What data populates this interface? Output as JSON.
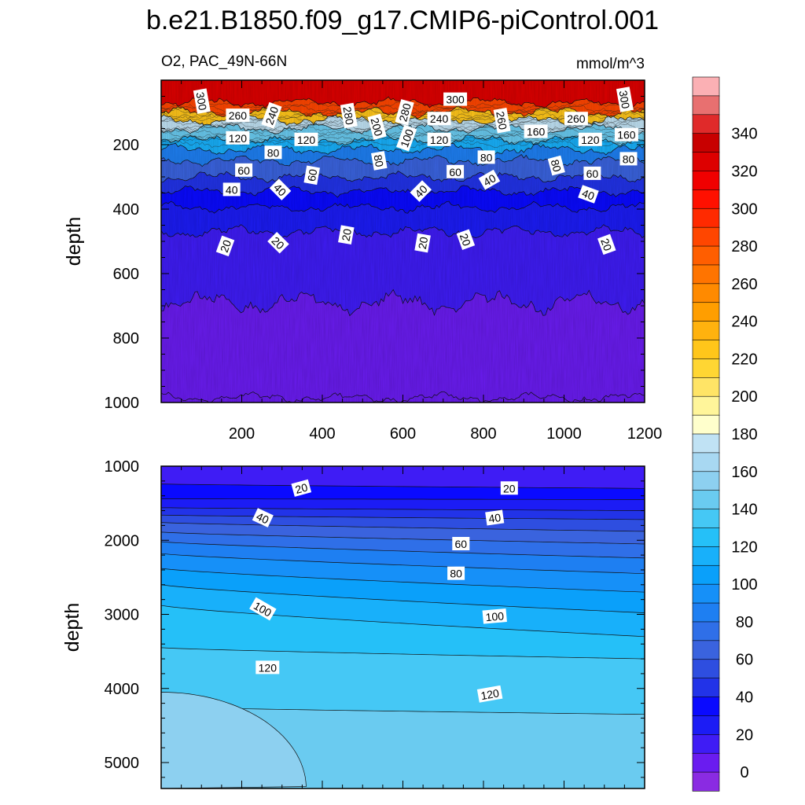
{
  "chart_data": {
    "type": "contour",
    "title": "b.e21.B1850.f09_g17.CMIP6-piControl.001",
    "variable": "O2, PAC_49N-66N",
    "units": "mmol/m^3",
    "panels": [
      {
        "id": "upper",
        "ylabel": "depth",
        "xlim": [
          0,
          1200
        ],
        "ylim": [
          1000,
          0
        ],
        "xticks": [
          "200",
          "400",
          "600",
          "800",
          "1000",
          "1200"
        ],
        "yticks": [
          "200",
          "400",
          "600",
          "800",
          "1000"
        ],
        "bands": [
          {
            "top": 0,
            "bottom": 70,
            "level": 320
          },
          {
            "top": 70,
            "bottom": 100,
            "level": 280
          },
          {
            "top": 100,
            "bottom": 125,
            "level": 220
          },
          {
            "top": 125,
            "bottom": 150,
            "level": 170
          },
          {
            "top": 150,
            "bottom": 185,
            "level": 140
          },
          {
            "top": 185,
            "bottom": 215,
            "level": 110
          },
          {
            "top": 215,
            "bottom": 250,
            "level": 80
          },
          {
            "top": 250,
            "bottom": 300,
            "level": 60
          },
          {
            "top": 300,
            "bottom": 345,
            "level": 45
          },
          {
            "top": 345,
            "bottom": 395,
            "level": 30
          },
          {
            "top": 395,
            "bottom": 470,
            "level": 20
          },
          {
            "top": 470,
            "bottom": 690,
            "level": 15
          },
          {
            "top": 690,
            "bottom": 1000,
            "level": 5
          }
        ],
        "contour_labels": [
          {
            "text": "300",
            "x": 100,
            "y": 65,
            "rot": 80
          },
          {
            "text": "260",
            "x": 190,
            "y": 110,
            "rot": 0
          },
          {
            "text": "240",
            "x": 275,
            "y": 110,
            "rot": -70
          },
          {
            "text": "280",
            "x": 465,
            "y": 110,
            "rot": 80
          },
          {
            "text": "200",
            "x": 535,
            "y": 145,
            "rot": 75
          },
          {
            "text": "280",
            "x": 605,
            "y": 100,
            "rot": -75
          },
          {
            "text": "300",
            "x": 730,
            "y": 60,
            "rot": 0
          },
          {
            "text": "240",
            "x": 690,
            "y": 120,
            "rot": 0
          },
          {
            "text": "260",
            "x": 845,
            "y": 125,
            "rot": 80
          },
          {
            "text": "160",
            "x": 930,
            "y": 160,
            "rot": 0
          },
          {
            "text": "260",
            "x": 1030,
            "y": 120,
            "rot": 0
          },
          {
            "text": "300",
            "x": 1150,
            "y": 60,
            "rot": 80
          },
          {
            "text": "160",
            "x": 1155,
            "y": 170,
            "rot": 0
          },
          {
            "text": "120",
            "x": 190,
            "y": 180,
            "rot": 0
          },
          {
            "text": "120",
            "x": 360,
            "y": 185,
            "rot": 0
          },
          {
            "text": "120",
            "x": 690,
            "y": 185,
            "rot": 0
          },
          {
            "text": "120",
            "x": 1065,
            "y": 185,
            "rot": 0
          },
          {
            "text": "100",
            "x": 610,
            "y": 180,
            "rot": -70
          },
          {
            "text": "80",
            "x": 278,
            "y": 225,
            "rot": 0
          },
          {
            "text": "80",
            "x": 540,
            "y": 250,
            "rot": 80
          },
          {
            "text": "80",
            "x": 807,
            "y": 240,
            "rot": 0
          },
          {
            "text": "80",
            "x": 980,
            "y": 265,
            "rot": 75
          },
          {
            "text": "80",
            "x": 1160,
            "y": 245,
            "rot": 0
          },
          {
            "text": "60",
            "x": 205,
            "y": 280,
            "rot": 0
          },
          {
            "text": "60",
            "x": 375,
            "y": 295,
            "rot": -80
          },
          {
            "text": "60",
            "x": 730,
            "y": 285,
            "rot": 0
          },
          {
            "text": "60",
            "x": 1070,
            "y": 290,
            "rot": 0
          },
          {
            "text": "40",
            "x": 175,
            "y": 340,
            "rot": 0
          },
          {
            "text": "40",
            "x": 295,
            "y": 340,
            "rot": 45
          },
          {
            "text": "40",
            "x": 645,
            "y": 345,
            "rot": -45
          },
          {
            "text": "40",
            "x": 815,
            "y": 310,
            "rot": -30
          },
          {
            "text": "40",
            "x": 1060,
            "y": 355,
            "rot": 20
          },
          {
            "text": "20",
            "x": 160,
            "y": 515,
            "rot": -70
          },
          {
            "text": "20",
            "x": 290,
            "y": 505,
            "rot": 45
          },
          {
            "text": "20",
            "x": 460,
            "y": 480,
            "rot": -80
          },
          {
            "text": "20",
            "x": 650,
            "y": 505,
            "rot": -80
          },
          {
            "text": "20",
            "x": 755,
            "y": 495,
            "rot": 70
          },
          {
            "text": "20",
            "x": 1105,
            "y": 510,
            "rot": 70
          }
        ]
      },
      {
        "id": "lower",
        "ylabel": "depth",
        "ylim": [
          5350,
          1000
        ],
        "yticks": [
          "1000",
          "2000",
          "3000",
          "4000",
          "5000"
        ],
        "contour_labels": [
          {
            "text": "20",
            "x": 0.29,
            "y": 1300,
            "rot": -15
          },
          {
            "text": "20",
            "x": 0.72,
            "y": 1300,
            "rot": 0
          },
          {
            "text": "40",
            "x": 0.21,
            "y": 1700,
            "rot": 25
          },
          {
            "text": "40",
            "x": 0.69,
            "y": 1700,
            "rot": -8
          },
          {
            "text": "60",
            "x": 0.62,
            "y": 2050,
            "rot": 0
          },
          {
            "text": "80",
            "x": 0.61,
            "y": 2450,
            "rot": 0
          },
          {
            "text": "100",
            "x": 0.21,
            "y": 2930,
            "rot": 30
          },
          {
            "text": "100",
            "x": 0.69,
            "y": 3030,
            "rot": -5
          },
          {
            "text": "120",
            "x": 0.22,
            "y": 3720,
            "rot": 0
          },
          {
            "text": "120",
            "x": 0.68,
            "y": 4080,
            "rot": -10
          }
        ]
      }
    ],
    "colorbar": {
      "tick_labels": [
        "0",
        "20",
        "40",
        "60",
        "80",
        "100",
        "120",
        "140",
        "160",
        "180",
        "200",
        "220",
        "240",
        "260",
        "280",
        "300",
        "320",
        "340"
      ],
      "colors": [
        "#8a2be2",
        "#6a1cf0",
        "#3f1cf5",
        "#1c1cf5",
        "#0a0aff",
        "#2233e8",
        "#2e4ee0",
        "#3a63de",
        "#2f6fe8",
        "#1e7ff2",
        "#1690f8",
        "#0aa0fa",
        "#18b0fa",
        "#25c0f8",
        "#45c8f5",
        "#6acbf0",
        "#8dd0f0",
        "#a8d8f2",
        "#c0e2f4",
        "#ffffcc",
        "#fff59a",
        "#ffe466",
        "#ffd633",
        "#ffc61a",
        "#ffb20e",
        "#ff9e00",
        "#ff8a00",
        "#ff7400",
        "#ff5e00",
        "#ff4600",
        "#ff2a00",
        "#ff1000",
        "#f00000",
        "#dd0000",
        "#c80000",
        "#e02a2a",
        "#e87070",
        "#fbb0b4"
      ]
    }
  }
}
